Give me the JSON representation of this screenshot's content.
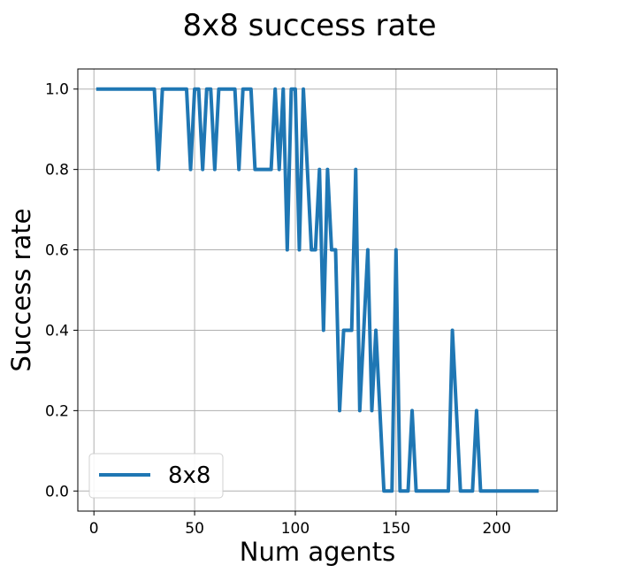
{
  "chart_data": {
    "type": "line",
    "title": "8x8 success rate",
    "xlabel": "Num agents",
    "ylabel": "Success rate",
    "xlim": [
      -8,
      230
    ],
    "ylim": [
      -0.05,
      1.05
    ],
    "xticks": [
      0,
      50,
      100,
      150,
      200
    ],
    "yticks": [
      0.0,
      0.2,
      0.4,
      0.6,
      0.8,
      1.0
    ],
    "xtick_labels": [
      "0",
      "50",
      "100",
      "150",
      "200"
    ],
    "ytick_labels": [
      "0.0",
      "0.2",
      "0.4",
      "0.6",
      "0.8",
      "1.0"
    ],
    "grid": true,
    "legend_position": "lower-left",
    "series": [
      {
        "name": "8x8",
        "color": "#1f77b4",
        "x": [
          2,
          4,
          6,
          8,
          10,
          12,
          14,
          16,
          18,
          20,
          22,
          24,
          26,
          28,
          30,
          32,
          34,
          36,
          38,
          40,
          42,
          44,
          46,
          48,
          50,
          52,
          54,
          56,
          58,
          60,
          62,
          64,
          66,
          68,
          70,
          72,
          74,
          76,
          78,
          80,
          82,
          84,
          86,
          88,
          90,
          92,
          94,
          96,
          98,
          100,
          102,
          104,
          106,
          108,
          110,
          112,
          114,
          116,
          118,
          120,
          122,
          124,
          126,
          128,
          130,
          132,
          134,
          136,
          138,
          140,
          142,
          144,
          146,
          148,
          150,
          152,
          154,
          156,
          158,
          160,
          162,
          164,
          166,
          168,
          170,
          172,
          174,
          176,
          178,
          180,
          182,
          184,
          186,
          188,
          190,
          192,
          194,
          196,
          198,
          200,
          202,
          204,
          206,
          208,
          210,
          212,
          214,
          216,
          218,
          220
        ],
        "y": [
          1.0,
          1.0,
          1.0,
          1.0,
          1.0,
          1.0,
          1.0,
          1.0,
          1.0,
          1.0,
          1.0,
          1.0,
          1.0,
          1.0,
          1.0,
          0.8,
          1.0,
          1.0,
          1.0,
          1.0,
          1.0,
          1.0,
          1.0,
          0.8,
          1.0,
          1.0,
          0.8,
          1.0,
          1.0,
          0.8,
          1.0,
          1.0,
          1.0,
          1.0,
          1.0,
          0.8,
          1.0,
          1.0,
          1.0,
          0.8,
          0.8,
          0.8,
          0.8,
          0.8,
          1.0,
          0.8,
          1.0,
          0.6,
          1.0,
          1.0,
          0.6,
          1.0,
          0.8,
          0.6,
          0.6,
          0.8,
          0.4,
          0.8,
          0.6,
          0.6,
          0.2,
          0.4,
          0.4,
          0.4,
          0.8,
          0.2,
          0.4,
          0.6,
          0.2,
          0.4,
          0.2,
          0.0,
          0.0,
          0.0,
          0.6,
          0.0,
          0.0,
          0.0,
          0.2,
          0.0,
          0.0,
          0.0,
          0.0,
          0.0,
          0.0,
          0.0,
          0.0,
          0.0,
          0.4,
          0.2,
          0.0,
          0.0,
          0.0,
          0.0,
          0.2,
          0.0,
          0.0,
          0.0,
          0.0,
          0.0,
          0.0,
          0.0,
          0.0,
          0.0,
          0.0,
          0.0,
          0.0,
          0.0,
          0.0,
          0.0
        ]
      }
    ]
  }
}
